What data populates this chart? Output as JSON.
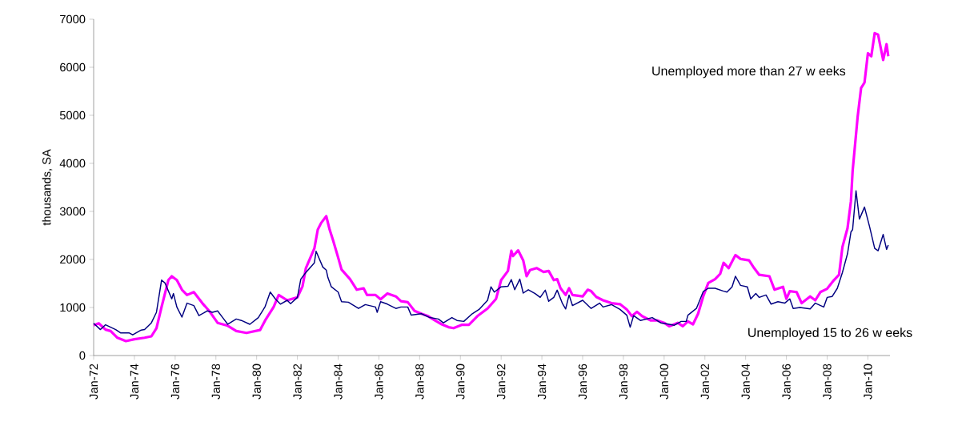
{
  "chart_data": {
    "type": "line",
    "ylabel": "thousands, SA",
    "xlim": [
      "1972-01",
      "2011-02"
    ],
    "ylim": [
      0,
      7000
    ],
    "yticks": [
      0,
      1000,
      2000,
      3000,
      4000,
      5000,
      6000,
      7000
    ],
    "xticks": [
      {
        "value": "1972-01",
        "label": "Jan-72"
      },
      {
        "value": "1974-01",
        "label": "Jan-74"
      },
      {
        "value": "1976-01",
        "label": "Jan-76"
      },
      {
        "value": "1978-01",
        "label": "Jan-78"
      },
      {
        "value": "1980-01",
        "label": "Jan-80"
      },
      {
        "value": "1982-01",
        "label": "Jan-82"
      },
      {
        "value": "1984-01",
        "label": "Jan-84"
      },
      {
        "value": "1986-01",
        "label": "Jan-86"
      },
      {
        "value": "1988-01",
        "label": "Jan-88"
      },
      {
        "value": "1990-01",
        "label": "Jan-90"
      },
      {
        "value": "1992-01",
        "label": "Jan-92"
      },
      {
        "value": "1994-01",
        "label": "Jan-94"
      },
      {
        "value": "1996-01",
        "label": "Jan-96"
      },
      {
        "value": "1998-01",
        "label": "Jan-98"
      },
      {
        "value": "2000-01",
        "label": "Jan-00"
      },
      {
        "value": "2002-01",
        "label": "Jan-02"
      },
      {
        "value": "2004-01",
        "label": "Jan-04"
      },
      {
        "value": "2006-01",
        "label": "Jan-06"
      },
      {
        "value": "2008-01",
        "label": "Jan-08"
      },
      {
        "value": "2010-01",
        "label": "Jan-10"
      }
    ],
    "series": [
      {
        "name": "Unemployed more than 27 w eeks",
        "color": "#ff00ff",
        "x": [
          "1972-01",
          "1972-04",
          "1972-08",
          "1972-11",
          "1973-03",
          "1973-08",
          "1974-01",
          "1974-07",
          "1974-11",
          "1975-02",
          "1975-05",
          "1975-09",
          "1975-11",
          "1976-02",
          "1976-05",
          "1976-08",
          "1976-12",
          "1977-05",
          "1977-09",
          "1978-02",
          "1978-08",
          "1979-01",
          "1979-07",
          "1980-03",
          "1980-06",
          "1980-11",
          "1981-02",
          "1981-07",
          "1982-01",
          "1982-04",
          "1982-06",
          "1982-11",
          "1983-01",
          "1983-03",
          "1983-06",
          "1983-08",
          "1983-10",
          "1984-01",
          "1984-03",
          "1984-08",
          "1984-12",
          "1985-04",
          "1985-06",
          "1985-11",
          "1986-02",
          "1986-06",
          "1986-11",
          "1987-02",
          "1987-06",
          "1987-10",
          "1988-02",
          "1988-06",
          "1988-10",
          "1989-02",
          "1989-06",
          "1989-09",
          "1990-02",
          "1990-06",
          "1990-11",
          "1991-05",
          "1991-10",
          "1992-01",
          "1992-05",
          "1992-07",
          "1992-08",
          "1992-11",
          "1993-02",
          "1993-04",
          "1993-06",
          "1993-10",
          "1994-02",
          "1994-05",
          "1994-08",
          "1994-10",
          "1994-12",
          "1995-03",
          "1995-05",
          "1995-07",
          "1996-01",
          "1996-04",
          "1996-06",
          "1996-09",
          "1997-01",
          "1997-06",
          "1997-11",
          "1998-03",
          "1998-06",
          "1998-09",
          "1998-12",
          "1999-05",
          "1999-09",
          "2000-01",
          "2000-04",
          "2000-09",
          "2000-12",
          "2001-03",
          "2001-06",
          "2001-09",
          "2001-12",
          "2002-03",
          "2002-07",
          "2002-10",
          "2002-12",
          "2003-03",
          "2003-07",
          "2003-10",
          "2004-03",
          "2004-06",
          "2004-09",
          "2005-03",
          "2005-06",
          "2005-11",
          "2006-01",
          "2006-03",
          "2006-07",
          "2006-10",
          "2007-03",
          "2007-06",
          "2007-09",
          "2008-01",
          "2008-05",
          "2008-08",
          "2008-10",
          "2009-01",
          "2009-03",
          "2009-04",
          "2009-07",
          "2009-09",
          "2009-11",
          "2010-01",
          "2010-03",
          "2010-05",
          "2010-07",
          "2010-10",
          "2010-12",
          "2011-01"
        ],
        "values": [
          630,
          670,
          540,
          510,
          370,
          300,
          340,
          370,
          400,
          570,
          1010,
          1570,
          1650,
          1570,
          1370,
          1260,
          1320,
          1090,
          930,
          680,
          620,
          510,
          470,
          530,
          730,
          1010,
          1260,
          1150,
          1210,
          1440,
          1820,
          2230,
          2620,
          2760,
          2900,
          2620,
          2400,
          2040,
          1790,
          1590,
          1370,
          1400,
          1260,
          1260,
          1170,
          1290,
          1230,
          1130,
          1110,
          930,
          870,
          820,
          730,
          650,
          590,
          570,
          640,
          640,
          820,
          980,
          1180,
          1570,
          1760,
          2180,
          2070,
          2190,
          1980,
          1650,
          1780,
          1820,
          1740,
          1760,
          1570,
          1590,
          1400,
          1260,
          1400,
          1260,
          1230,
          1370,
          1340,
          1220,
          1150,
          1090,
          1070,
          960,
          820,
          910,
          820,
          730,
          730,
          680,
          610,
          680,
          610,
          710,
          650,
          870,
          1230,
          1510,
          1590,
          1700,
          1930,
          1820,
          2090,
          2010,
          1980,
          1820,
          1680,
          1650,
          1370,
          1430,
          1180,
          1340,
          1320,
          1090,
          1230,
          1150,
          1320,
          1390,
          1570,
          1680,
          2260,
          2650,
          3210,
          3840,
          4980,
          5570,
          5680,
          6290,
          6230,
          6710,
          6680,
          6150,
          6480,
          6230
        ]
      },
      {
        "name": "Unemployed 15 to 26 w eeks",
        "color": "#000080",
        "x": [
          "1972-01",
          "1972-05",
          "1972-08",
          "1973-02",
          "1973-05",
          "1973-10",
          "1973-12",
          "1974-05",
          "1974-07",
          "1974-11",
          "1975-02",
          "1975-05",
          "1975-07",
          "1975-11",
          "1975-12",
          "1976-02",
          "1976-05",
          "1976-08",
          "1976-12",
          "1977-03",
          "1977-08",
          "1977-11",
          "1978-02",
          "1978-05",
          "1978-08",
          "1979-01",
          "1979-04",
          "1979-09",
          "1980-02",
          "1980-05",
          "1980-06",
          "1980-09",
          "1980-12",
          "1981-03",
          "1981-07",
          "1981-09",
          "1982-01",
          "1982-03",
          "1982-06",
          "1982-11",
          "1982-12",
          "1983-04",
          "1983-06",
          "1983-07",
          "1983-09",
          "1984-01",
          "1984-03",
          "1984-07",
          "1985-01",
          "1985-05",
          "1985-11",
          "1985-12",
          "1986-02",
          "1986-06",
          "1986-11",
          "1987-02",
          "1987-06",
          "1987-08",
          "1988-02",
          "1988-07",
          "1988-12",
          "1989-03",
          "1989-08",
          "1989-11",
          "1990-03",
          "1990-08",
          "1990-12",
          "1991-05",
          "1991-07",
          "1991-09",
          "1992-01",
          "1992-05",
          "1992-07",
          "1992-09",
          "1992-12",
          "1993-02",
          "1993-05",
          "1993-09",
          "1993-12",
          "1994-03",
          "1994-05",
          "1994-08",
          "1994-10",
          "1995-01",
          "1995-03",
          "1995-05",
          "1995-07",
          "1996-01",
          "1996-06",
          "1996-11",
          "1997-01",
          "1997-06",
          "1997-11",
          "1998-03",
          "1998-05",
          "1998-07",
          "1998-11",
          "1999-06",
          "1999-11",
          "2000-04",
          "2000-07",
          "2000-11",
          "2001-02",
          "2001-03",
          "2001-08",
          "2001-12",
          "2002-03",
          "2002-07",
          "2002-12",
          "2003-02",
          "2003-05",
          "2003-07",
          "2003-10",
          "2004-02",
          "2004-04",
          "2004-07",
          "2004-09",
          "2005-01",
          "2005-04",
          "2005-08",
          "2005-12",
          "2006-03",
          "2006-05",
          "2006-09",
          "2007-03",
          "2007-06",
          "2007-11",
          "2008-01",
          "2008-04",
          "2008-07",
          "2008-10",
          "2009-01",
          "2009-03",
          "2009-04",
          "2009-06",
          "2009-08",
          "2009-11",
          "2010-02",
          "2010-05",
          "2010-07",
          "2010-10",
          "2010-12",
          "2011-01"
        ],
        "values": [
          670,
          540,
          640,
          540,
          470,
          470,
          430,
          530,
          540,
          680,
          900,
          1570,
          1510,
          1180,
          1290,
          1010,
          800,
          1090,
          1040,
          830,
          930,
          900,
          930,
          790,
          650,
          760,
          730,
          650,
          790,
          960,
          1020,
          1320,
          1180,
          1070,
          1150,
          1080,
          1210,
          1590,
          1730,
          1930,
          2170,
          1840,
          1780,
          1620,
          1430,
          1320,
          1120,
          1110,
          980,
          1060,
          1010,
          900,
          1120,
          1070,
          980,
          1010,
          1010,
          840,
          870,
          790,
          760,
          680,
          790,
          730,
          710,
          870,
          960,
          1150,
          1430,
          1320,
          1430,
          1440,
          1580,
          1370,
          1590,
          1300,
          1370,
          1290,
          1210,
          1360,
          1130,
          1210,
          1360,
          1090,
          970,
          1260,
          1040,
          1150,
          980,
          1090,
          1010,
          1060,
          960,
          840,
          590,
          830,
          730,
          790,
          680,
          650,
          630,
          710,
          710,
          840,
          980,
          1330,
          1400,
          1400,
          1340,
          1320,
          1430,
          1650,
          1460,
          1430,
          1180,
          1290,
          1210,
          1260,
          1070,
          1120,
          1090,
          1180,
          980,
          1000,
          970,
          1090,
          1010,
          1210,
          1230,
          1400,
          1730,
          2120,
          2570,
          2620,
          3430,
          2840,
          3090,
          2680,
          2230,
          2180,
          2520,
          2210,
          2300
        ]
      }
    ]
  }
}
